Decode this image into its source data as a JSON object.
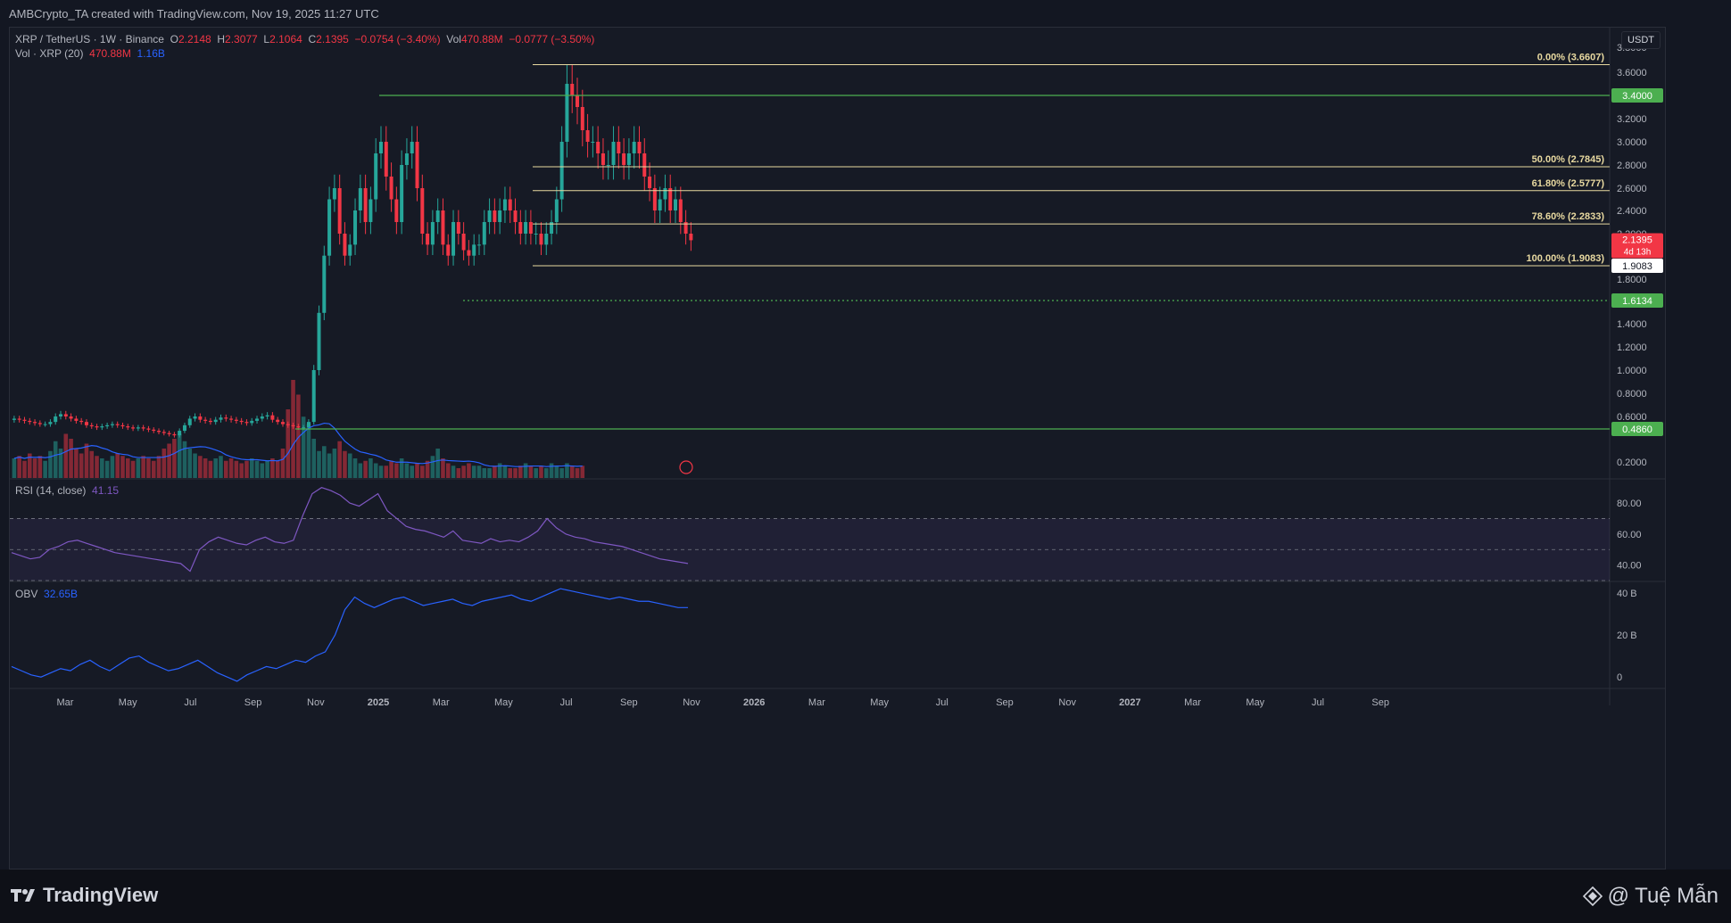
{
  "header": {
    "credit": "AMBCrypto_TA created with TradingView.com, Nov 19, 2025 11:27 UTC"
  },
  "legend": {
    "symbol": "XRP / TetherUS · 1W · Binance",
    "o_label": "O",
    "o": "2.2148",
    "h_label": "H",
    "h": "2.3077",
    "l_label": "L",
    "l": "2.1064",
    "c_label": "C",
    "c": "2.1395",
    "chg": "−0.0754 (−3.40%)",
    "vol_label": "Vol",
    "vol": "470.88M",
    "vol_chg": "−0.0777 (−3.50%)",
    "vol_indicator": "Vol · XRP (20)",
    "vol_value": "470.88M",
    "vol_ma": "1.16B",
    "rsi_label": "RSI (14, close)",
    "rsi_value": "41.15",
    "obv_label": "OBV",
    "obv_value": "32.65B"
  },
  "currency": "USDT",
  "footer": {
    "brand": "TradingView",
    "watermark": "@ Tuệ Mẫn"
  },
  "colors": {
    "up": "#26a69a",
    "down": "#f23645",
    "fib": "#e8d9a0",
    "level": "#4caf50",
    "rsi": "#7e57c2",
    "obv": "#2962ff",
    "volma": "#2962ff"
  },
  "chart_data": [
    {
      "type": "candlestick",
      "title": "XRP / TetherUS · 1W · Binance",
      "ylabel": "USDT",
      "ylim": [
        0.1,
        3.85
      ],
      "y_ticks": [
        "3.8000",
        "3.6000",
        "3.2000",
        "3.0000",
        "2.8000",
        "2.6000",
        "2.4000",
        "2.2000",
        "1.8000",
        "1.4000",
        "1.2000",
        "1.0000",
        "0.8000",
        "0.6000",
        "0.2000"
      ],
      "x_ticks": [
        "Mar",
        "May",
        "Jul",
        "Sep",
        "Nov",
        "2025",
        "Mar",
        "May",
        "Jul",
        "Sep",
        "Nov",
        "2026",
        "Mar",
        "May",
        "Jul",
        "Sep",
        "Nov",
        "2027",
        "Mar",
        "May",
        "Jul",
        "Sep"
      ],
      "price_path": [
        0.58,
        0.57,
        0.56,
        0.55,
        0.54,
        0.53,
        0.53,
        0.55,
        0.6,
        0.62,
        0.6,
        0.58,
        0.56,
        0.55,
        0.52,
        0.51,
        0.5,
        0.51,
        0.52,
        0.53,
        0.52,
        0.51,
        0.5,
        0.49,
        0.5,
        0.49,
        0.48,
        0.47,
        0.46,
        0.45,
        0.44,
        0.43,
        0.47,
        0.52,
        0.58,
        0.6,
        0.57,
        0.56,
        0.55,
        0.57,
        0.59,
        0.58,
        0.57,
        0.56,
        0.55,
        0.54,
        0.56,
        0.58,
        0.6,
        0.61,
        0.57,
        0.55,
        0.53,
        0.52,
        0.51,
        0.5,
        0.5,
        0.55,
        1.0,
        1.5,
        2.0,
        2.5,
        2.6,
        2.2,
        2.0,
        2.1,
        2.4,
        2.6,
        2.3,
        2.5,
        2.9,
        3.0,
        2.7,
        2.5,
        2.3,
        2.8,
        2.9,
        3.0,
        2.6,
        2.2,
        2.1,
        2.3,
        2.4,
        2.1,
        2.0,
        2.3,
        2.2,
        2.05,
        2.0,
        2.1,
        2.1,
        2.3,
        2.4,
        2.3,
        2.4,
        2.5,
        2.4,
        2.3,
        2.2,
        2.3,
        2.2,
        2.2,
        2.1,
        2.2,
        2.3,
        2.5,
        3.0,
        3.5,
        3.4,
        3.3,
        3.1,
        3.0,
        3.0,
        2.9,
        2.8,
        2.8,
        3.0,
        2.9,
        2.8,
        2.9,
        3.0,
        2.9,
        2.7,
        2.6,
        2.4,
        2.5,
        2.6,
        2.4,
        2.5,
        2.3,
        2.2,
        2.14
      ],
      "fib_levels": [
        {
          "label": "0.00% (3.6607)",
          "value": 3.6607
        },
        {
          "label": "50.00% (2.7845)",
          "value": 2.7845
        },
        {
          "label": "61.80% (2.5777)",
          "value": 2.5777
        },
        {
          "label": "78.60% (2.2833)",
          "value": 2.2833
        },
        {
          "label": "100.00% (1.9083)",
          "value": 1.9083
        }
      ],
      "levels": [
        {
          "label": "3.4000",
          "value": 3.4
        },
        {
          "label": "1.6134",
          "value": 1.6134
        },
        {
          "label": "0.4860",
          "value": 0.486
        }
      ],
      "last_price": {
        "value": "2.1395",
        "countdown": "4d 13h"
      },
      "fib_price_tag": "1.9083"
    },
    {
      "type": "line",
      "title": "RSI (14, close)",
      "ylim": [
        30,
        95
      ],
      "y_ticks": [
        "80.00",
        "60.00",
        "40.00"
      ],
      "bands": [
        70,
        50,
        30
      ],
      "values": [
        48,
        46,
        44,
        45,
        50,
        52,
        55,
        56,
        54,
        52,
        50,
        48,
        47,
        46,
        45,
        44,
        43,
        42,
        41,
        36,
        50,
        55,
        58,
        56,
        54,
        53,
        56,
        58,
        55,
        54,
        56,
        72,
        86,
        90,
        88,
        85,
        80,
        78,
        82,
        86,
        75,
        70,
        65,
        63,
        62,
        60,
        58,
        62,
        56,
        55,
        54,
        57,
        55,
        56,
        55,
        58,
        62,
        70,
        64,
        60,
        58,
        57,
        55,
        54,
        53,
        52,
        50,
        48,
        46,
        44,
        43,
        42,
        41
      ]
    },
    {
      "type": "line",
      "title": "OBV",
      "ylim": [
        -5,
        45
      ],
      "y_ticks": [
        "40 B",
        "20 B",
        "0"
      ],
      "values": [
        5,
        3,
        1,
        0,
        2,
        4,
        3,
        6,
        8,
        5,
        3,
        6,
        9,
        10,
        7,
        5,
        3,
        4,
        6,
        8,
        5,
        2,
        0,
        -2,
        1,
        3,
        5,
        4,
        6,
        8,
        7,
        10,
        12,
        20,
        32,
        38,
        35,
        33,
        35,
        37,
        38,
        36,
        34,
        35,
        36,
        37,
        35,
        34,
        36,
        37,
        38,
        39,
        37,
        36,
        38,
        40,
        42,
        41,
        40,
        39,
        38,
        37,
        38,
        37,
        36,
        36,
        35,
        34,
        33,
        33
      ]
    },
    {
      "type": "bar",
      "title": "Vol · XRP (20)",
      "values": [
        0.8,
        0.9,
        0.7,
        1.0,
        0.8,
        0.9,
        0.7,
        1.1,
        1.5,
        1.2,
        1.8,
        1.6,
        1.2,
        1.0,
        1.4,
        1.1,
        0.9,
        0.8,
        0.7,
        0.9,
        1.0,
        0.9,
        0.8,
        0.7,
        0.8,
        0.9,
        0.8,
        0.7,
        0.9,
        1.2,
        1.4,
        1.6,
        1.8,
        1.5,
        1.2,
        1.0,
        0.9,
        0.8,
        0.7,
        0.8,
        0.9,
        0.7,
        0.8,
        0.7,
        0.6,
        0.7,
        0.8,
        0.7,
        0.6,
        0.7,
        0.8,
        0.7,
        1.2,
        2.8,
        4.0,
        3.4,
        2.5,
        2.2,
        1.6,
        1.1,
        1.3,
        1.0,
        1.2,
        1.5,
        1.1,
        1.0,
        0.8,
        0.6,
        0.7,
        0.8,
        0.6,
        0.5,
        0.5,
        0.7,
        0.6,
        0.8,
        0.6,
        0.5,
        0.6,
        0.5,
        0.7,
        0.9,
        1.2,
        0.8,
        0.6,
        0.5,
        0.4,
        0.5,
        0.6,
        0.5,
        0.5,
        0.4,
        0.4,
        0.5,
        0.6,
        0.5,
        0.4,
        0.4,
        0.5,
        0.6,
        0.5,
        0.4,
        0.5,
        0.4,
        0.6,
        0.5,
        0.4,
        0.6,
        0.5,
        0.4,
        0.5
      ]
    }
  ]
}
